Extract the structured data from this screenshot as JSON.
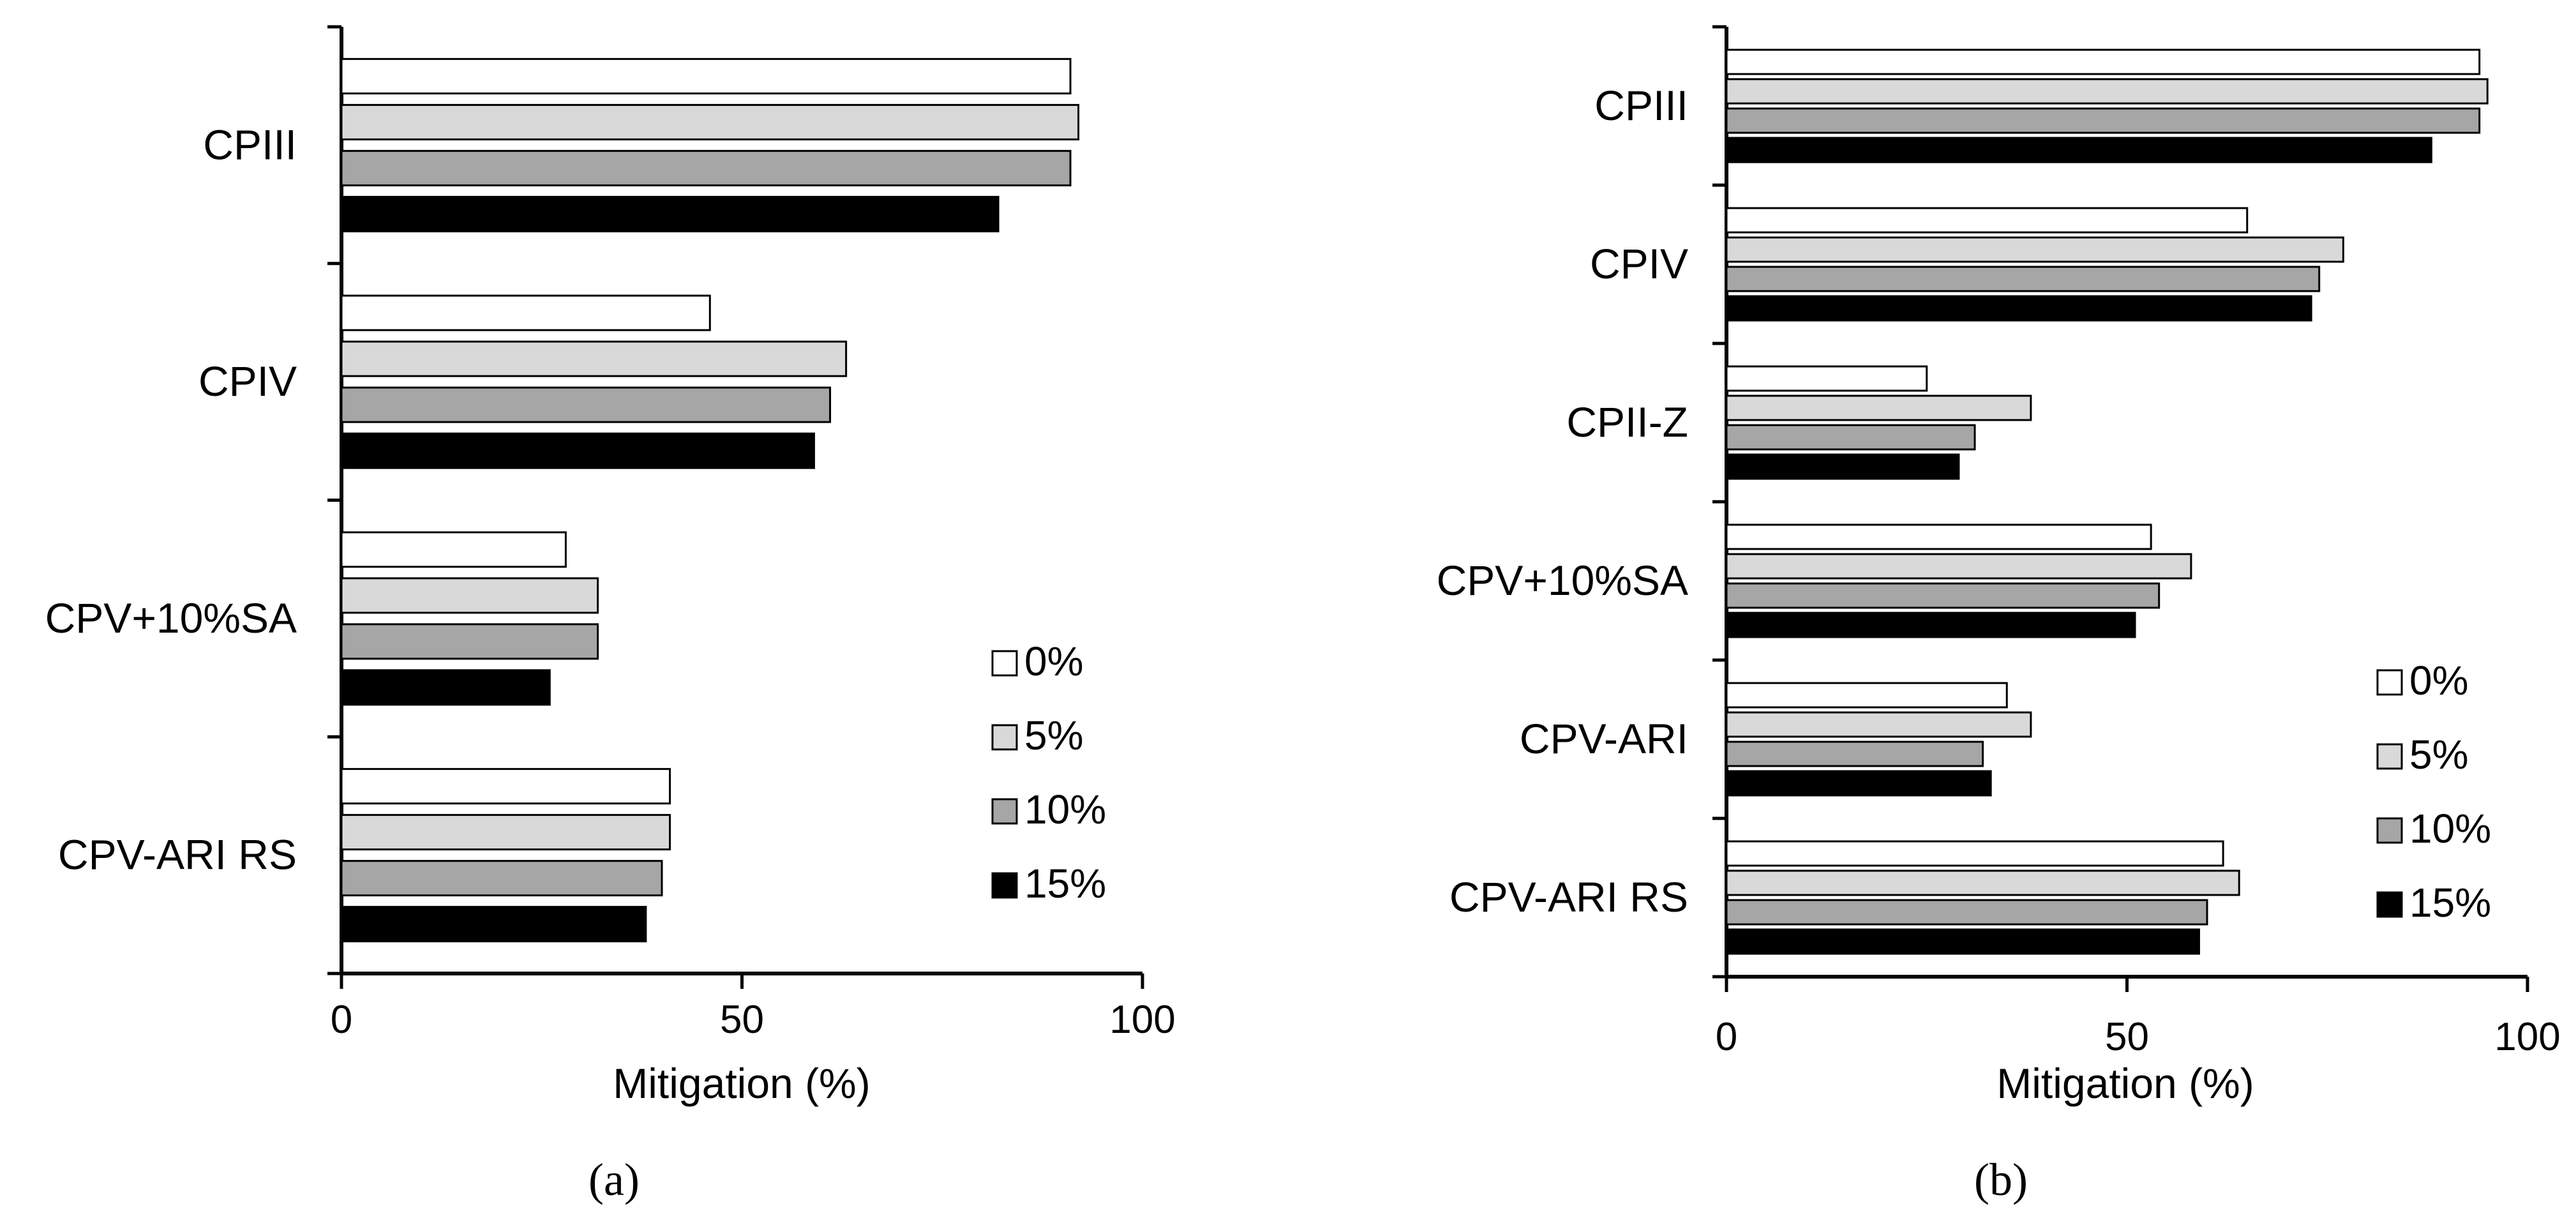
{
  "chart_data": [
    {
      "type": "bar",
      "orientation": "horizontal",
      "panel_label": "(a)",
      "xlabel": "Mitigation (%)",
      "xlim": [
        0,
        100
      ],
      "xticks": [
        "0",
        "50",
        "100"
      ],
      "categories": [
        "CPIII",
        "CPIV",
        "CPV+10%SA",
        "CPV-ARI RS"
      ],
      "series": [
        {
          "name": "0%",
          "color": "#ffffff",
          "values": [
            91,
            46,
            28,
            41
          ]
        },
        {
          "name": "5%",
          "color": "#d9d9d9",
          "values": [
            92,
            63,
            32,
            41
          ]
        },
        {
          "name": "10%",
          "color": "#a6a6a6",
          "values": [
            91,
            61,
            32,
            40
          ]
        },
        {
          "name": "15%",
          "color": "#000000",
          "values": [
            82,
            59,
            26,
            38
          ]
        }
      ],
      "legend": {
        "position": "bottom-right",
        "labels": [
          "0%",
          "5%",
          "10%",
          "15%"
        ]
      }
    },
    {
      "type": "bar",
      "orientation": "horizontal",
      "panel_label": "(b)",
      "xlabel": "Mitigation (%)",
      "xlim": [
        0,
        100
      ],
      "xticks": [
        "0",
        "50",
        "100"
      ],
      "categories": [
        "CPIII",
        "CPIV",
        "CPII-Z",
        "CPV+10%SA",
        "CPV-ARI",
        "CPV-ARI RS"
      ],
      "series": [
        {
          "name": "0%",
          "color": "#ffffff",
          "values": [
            94,
            65,
            25,
            53,
            35,
            62
          ]
        },
        {
          "name": "5%",
          "color": "#d9d9d9",
          "values": [
            95,
            77,
            38,
            58,
            38,
            64
          ]
        },
        {
          "name": "10%",
          "color": "#a6a6a6",
          "values": [
            94,
            74,
            31,
            54,
            32,
            60
          ]
        },
        {
          "name": "15%",
          "color": "#000000",
          "values": [
            88,
            73,
            29,
            51,
            33,
            59
          ]
        }
      ],
      "legend": {
        "position": "bottom-right",
        "labels": [
          "0%",
          "5%",
          "10%",
          "15%"
        ]
      }
    }
  ]
}
